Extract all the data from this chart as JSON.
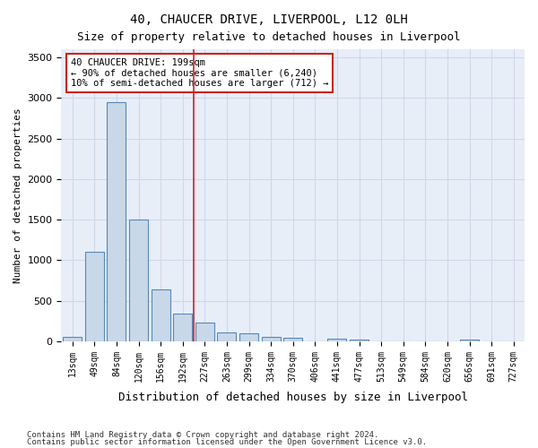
{
  "title": "40, CHAUCER DRIVE, LIVERPOOL, L12 0LH",
  "subtitle": "Size of property relative to detached houses in Liverpool",
  "xlabel": "Distribution of detached houses by size in Liverpool",
  "ylabel": "Number of detached properties",
  "footnote1": "Contains HM Land Registry data © Crown copyright and database right 2024.",
  "footnote2": "Contains public sector information licensed under the Open Government Licence v3.0.",
  "annotation_line1": "40 CHAUCER DRIVE: 199sqm",
  "annotation_line2": "← 90% of detached houses are smaller (6,240)",
  "annotation_line3": "10% of semi-detached houses are larger (712) →",
  "bar_labels": [
    "13sqm",
    "49sqm",
    "84sqm",
    "120sqm",
    "156sqm",
    "192sqm",
    "227sqm",
    "263sqm",
    "299sqm",
    "334sqm",
    "370sqm",
    "406sqm",
    "441sqm",
    "477sqm",
    "513sqm",
    "549sqm",
    "584sqm",
    "620sqm",
    "656sqm",
    "691sqm",
    "727sqm"
  ],
  "bar_values": [
    50,
    1100,
    2950,
    1500,
    640,
    340,
    230,
    110,
    95,
    50,
    40,
    0,
    30,
    25,
    0,
    0,
    0,
    0,
    25,
    0,
    0
  ],
  "bar_color": "#c8d8e8",
  "bar_edge_color": "#5588bb",
  "grid_color": "#d0d8e8",
  "background_color": "#e8eef8",
  "red_line_x": 5.5,
  "ylim": [
    0,
    3600
  ],
  "yticks": [
    0,
    500,
    1000,
    1500,
    2000,
    2500,
    3000,
    3500
  ]
}
